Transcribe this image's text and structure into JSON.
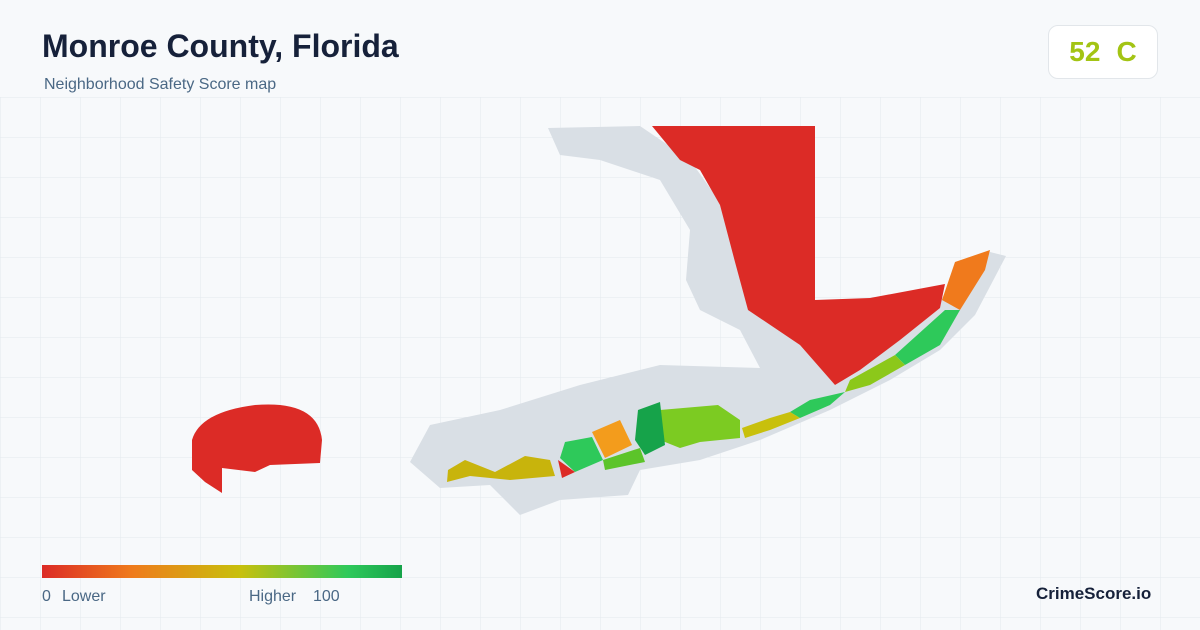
{
  "header": {
    "title": "Monroe County, Florida",
    "subtitle": "Neighborhood Safety Score map"
  },
  "badge": {
    "score": "52",
    "grade": "C"
  },
  "legend": {
    "min": "0",
    "min_label": "Lower",
    "max_label": "Higher",
    "max": "100"
  },
  "brand": "CrimeScore.io"
}
